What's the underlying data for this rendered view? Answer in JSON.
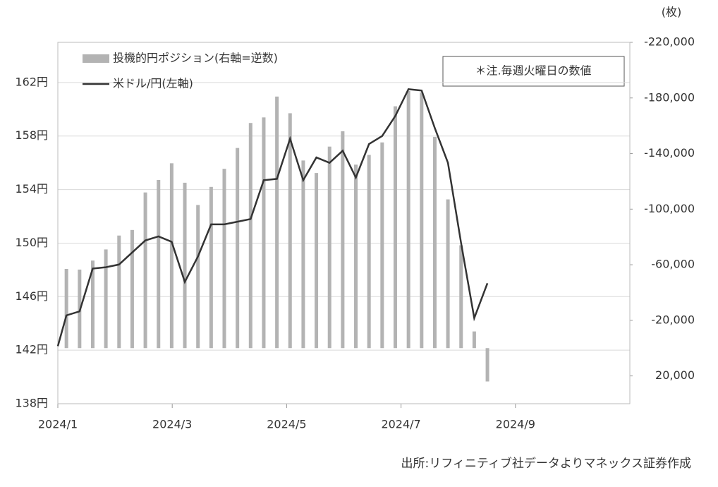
{
  "chart_data": {
    "type": "line_bar",
    "y2_label": "(枚)",
    "annotation": "＊注.毎週火曜日の数値",
    "source": "出所:リフィニティブ社データよりマネックス証券作成",
    "xlim": [
      0,
      10
    ],
    "xticks": [
      {
        "value": 0,
        "label": "2024/1"
      },
      {
        "value": 2,
        "label": "2024/3"
      },
      {
        "value": 4,
        "label": "2024/5"
      },
      {
        "value": 6,
        "label": "2024/7"
      },
      {
        "value": 8,
        "label": "2024/9"
      }
    ],
    "ylim": [
      138,
      165
    ],
    "yticks": [
      {
        "value": 138,
        "label": "138円"
      },
      {
        "value": 142,
        "label": "142円"
      },
      {
        "value": 146,
        "label": "146円"
      },
      {
        "value": 150,
        "label": "150円"
      },
      {
        "value": 154,
        "label": "154円"
      },
      {
        "value": 158,
        "label": "158円"
      },
      {
        "value": 162,
        "label": "162円"
      }
    ],
    "y2lim": [
      -220000,
      40000
    ],
    "y2_inverted": true,
    "y2ticks": [
      {
        "value": -220000,
        "label": "-220,000"
      },
      {
        "value": -180000,
        "label": "-180,000"
      },
      {
        "value": -140000,
        "label": "-140,000"
      },
      {
        "value": -100000,
        "label": "-100,000"
      },
      {
        "value": -60000,
        "label": "-60,000"
      },
      {
        "value": -20000,
        "label": "-20,000"
      },
      {
        "value": 20000,
        "label": "20,000"
      }
    ],
    "grid": true,
    "series": [
      {
        "name": "投機的円ポジション(右軸=逆数)",
        "type": "bar",
        "axis": "y2",
        "color": "#b3b3b3",
        "x": [
          0.15,
          0.38,
          0.61,
          0.84,
          1.07,
          1.3,
          1.53,
          1.76,
          1.99,
          2.22,
          2.45,
          2.68,
          2.91,
          3.14,
          3.37,
          3.6,
          3.83,
          4.06,
          4.29,
          4.52,
          4.75,
          4.98,
          5.21,
          5.44,
          5.67,
          5.9,
          6.13,
          6.36,
          6.59,
          6.82,
          7.05,
          7.28,
          7.51
        ],
        "values": [
          -57000,
          -56500,
          -63000,
          -71000,
          -81000,
          -85000,
          -112000,
          -121000,
          -133000,
          -119000,
          -103000,
          -116000,
          -129000,
          -144000,
          -162000,
          -166000,
          -181000,
          -169000,
          -135000,
          -126000,
          -145000,
          -156000,
          -132000,
          -139000,
          -148000,
          -174000,
          -185000,
          -184000,
          -152000,
          -107000,
          -74000,
          -12000,
          24000
        ]
      },
      {
        "name": "米ドル/円(左軸)",
        "type": "line",
        "color": "#333333",
        "x": [
          0,
          0.15,
          0.38,
          0.61,
          0.84,
          1.07,
          1.3,
          1.53,
          1.76,
          1.99,
          2.22,
          2.45,
          2.68,
          2.91,
          3.14,
          3.37,
          3.6,
          3.83,
          4.06,
          4.29,
          4.52,
          4.75,
          4.98,
          5.21,
          5.44,
          5.67,
          5.9,
          6.13,
          6.36,
          6.59,
          6.82,
          7.05,
          7.28,
          7.51
        ],
        "values": [
          142.3,
          144.6,
          144.9,
          148.1,
          148.2,
          148.4,
          149.3,
          150.2,
          150.5,
          150.1,
          147.1,
          149.0,
          151.4,
          151.4,
          151.6,
          151.8,
          154.7,
          154.8,
          157.8,
          154.7,
          156.4,
          156.0,
          156.9,
          154.9,
          157.4,
          158.0,
          159.5,
          161.5,
          161.4,
          158.6,
          156.0,
          150.0,
          144.4,
          147.0
        ]
      }
    ]
  }
}
